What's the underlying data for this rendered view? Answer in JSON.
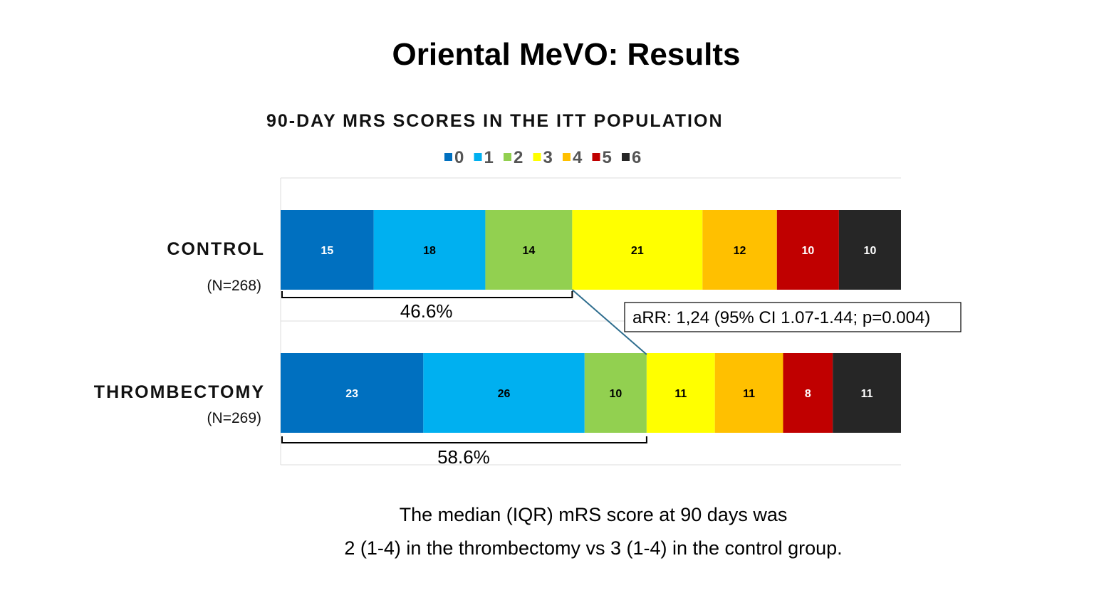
{
  "title": "Oriental MeVO: Results",
  "chart_data": {
    "type": "bar",
    "orientation": "horizontal-stacked-100",
    "title": "90-DAY MRS SCORES IN THE ITT POPULATION",
    "legend": {
      "placement": "top",
      "entries": [
        "0",
        "1",
        "2",
        "3",
        "4",
        "5",
        "6"
      ]
    },
    "colors": [
      "#0070C0",
      "#00B0F0",
      "#92D050",
      "#FFFF00",
      "#FFC000",
      "#C00000",
      "#262626"
    ],
    "label_colors": [
      "#ffffff",
      "#000000",
      "#000000",
      "#000000",
      "#000000",
      "#ffffff",
      "#ffffff"
    ],
    "xlim": [
      0,
      100
    ],
    "categories": [
      {
        "name": "CONTROL",
        "n": "(N=268)",
        "values": [
          15,
          18,
          14,
          21,
          12,
          10,
          10
        ],
        "bracket_label": "46.6%",
        "bracket_through": 2
      },
      {
        "name": "THROMBECTOMY",
        "n": "(N=269)",
        "values": [
          23,
          26,
          10,
          11,
          11,
          8,
          11
        ],
        "bracket_label": "58.6%",
        "bracket_through": 2
      }
    ],
    "annotation": "aRR: 1,24 (95% CI 1.07-1.44; p=0.004)"
  },
  "footnote": {
    "line1": "The median (IQR) mRS score at 90 days was",
    "line2": "2 (1-4) in the thrombectomy vs 3 (1-4) in the control group."
  }
}
